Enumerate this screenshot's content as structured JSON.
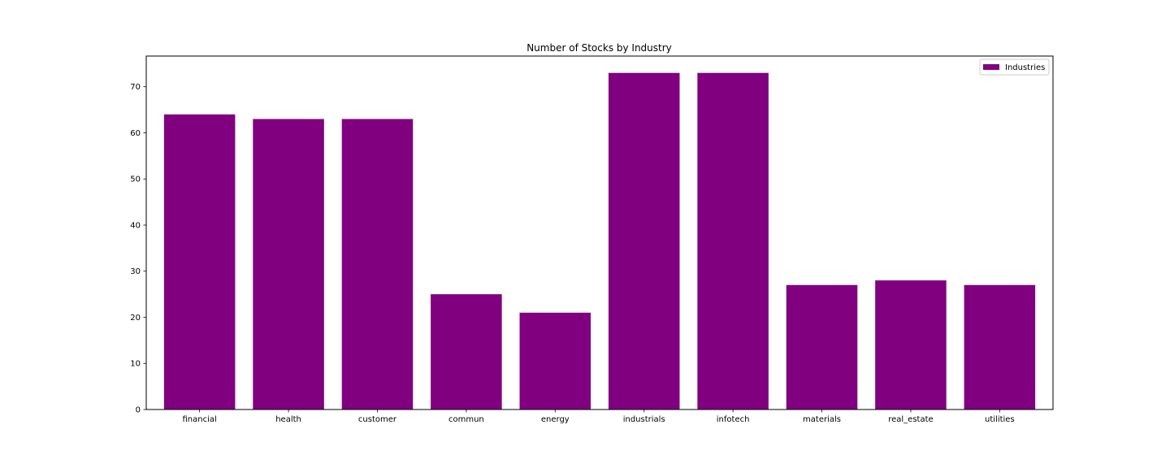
{
  "chart_data": {
    "type": "bar",
    "title": "Number of Stocks by Industry",
    "xlabel": "",
    "ylabel": "",
    "categories": [
      "financial",
      "health",
      "customer",
      "commun",
      "energy",
      "industrials",
      "infotech",
      "materials",
      "real_estate",
      "utilities"
    ],
    "series": [
      {
        "name": "Industries",
        "values": [
          64,
          63,
          63,
          25,
          21,
          73,
          73,
          27,
          28,
          27
        ]
      }
    ],
    "ylim": [
      0,
      76.65
    ],
    "yticks": [
      0,
      10,
      20,
      30,
      40,
      50,
      60,
      70
    ],
    "grid": false,
    "legend_position": "top-right",
    "colors": {
      "bar": "#800080",
      "axis": "#000000",
      "background": "#ffffff"
    }
  }
}
